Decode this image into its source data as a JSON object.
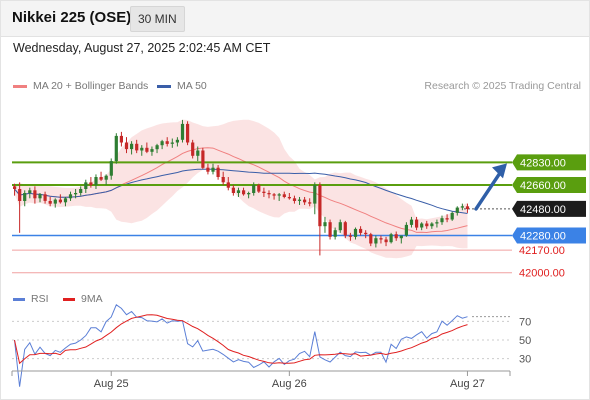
{
  "header": {
    "title": "Nikkei 225 (OSE)",
    "interval": "30 MIN"
  },
  "timestamp": "Wednesday, August 27, 2025 2:02:45 AM CET",
  "legend": {
    "ma20": "MA 20 + Bollinger Bands",
    "ma50": "MA 50",
    "credit": "Research © 2025 Trading Central"
  },
  "rsi_legend": {
    "rsi": "RSI",
    "ma9": "9MA"
  },
  "colors": {
    "up": "#2e7d32",
    "down": "#c62828",
    "ma20": "#f08080",
    "ma50": "#3a5ea8",
    "bollinger": "#fbe0e0",
    "resistance": "#5a9e0f",
    "support": "#3b82e6",
    "weak_support": "#f0a0a0",
    "arrow": "#2f5fa8",
    "rsi": "#5b7fd6",
    "rsi_ma": "#e02020"
  },
  "chart_data": [
    {
      "type": "candlestick",
      "title": "Nikkei 225 (OSE)",
      "x_labels": [
        "Aug 25",
        "Aug 26",
        "Aug 27"
      ],
      "ylim": [
        41930,
        43330
      ],
      "current_price": 42480.0,
      "levels": [
        {
          "label": "42830.00",
          "value": 42830.0,
          "kind": "resistance"
        },
        {
          "label": "42660.00",
          "value": 42660.0,
          "kind": "resistance"
        },
        {
          "label": "42480.00",
          "value": 42480.0,
          "kind": "current"
        },
        {
          "label": "42280.00",
          "value": 42280.0,
          "kind": "support"
        },
        {
          "label": "42170.00",
          "value": 42170.0,
          "kind": "weak-support"
        },
        {
          "label": "42000.00",
          "value": 42000.0,
          "kind": "weak-support"
        }
      ],
      "ohlc": [
        [
          42650,
          42670,
          42580,
          42630
        ],
        [
          42630,
          42680,
          42300,
          42540
        ],
        [
          42540,
          42620,
          42500,
          42600
        ],
        [
          42600,
          42640,
          42560,
          42620
        ],
        [
          42620,
          42650,
          42520,
          42560
        ],
        [
          42560,
          42600,
          42530,
          42590
        ],
        [
          42590,
          42610,
          42520,
          42540
        ],
        [
          42540,
          42570,
          42500,
          42520
        ],
        [
          42520,
          42560,
          42490,
          42550
        ],
        [
          42550,
          42590,
          42520,
          42530
        ],
        [
          42530,
          42570,
          42500,
          42560
        ],
        [
          42560,
          42610,
          42540,
          42590
        ],
        [
          42590,
          42630,
          42560,
          42600
        ],
        [
          42600,
          42650,
          42580,
          42630
        ],
        [
          42630,
          42700,
          42600,
          42680
        ],
        [
          42680,
          42720,
          42640,
          42660
        ],
        [
          42660,
          42740,
          42630,
          42720
        ],
        [
          42720,
          42760,
          42690,
          42700
        ],
        [
          42700,
          42740,
          42660,
          42730
        ],
        [
          42730,
          42860,
          42700,
          42840
        ],
        [
          42840,
          43050,
          42820,
          43030
        ],
        [
          43030,
          43060,
          42950,
          42980
        ],
        [
          42980,
          43020,
          42900,
          42930
        ],
        [
          42930,
          42990,
          42890,
          42970
        ],
        [
          42970,
          43000,
          42900,
          42920
        ],
        [
          42920,
          42960,
          42880,
          42940
        ],
        [
          42940,
          42980,
          42900,
          42910
        ],
        [
          42910,
          42950,
          42880,
          42930
        ],
        [
          42930,
          42970,
          42900,
          42960
        ],
        [
          42960,
          43000,
          42930,
          42990
        ],
        [
          42990,
          43020,
          42950,
          42970
        ],
        [
          42970,
          43010,
          42940,
          42980
        ],
        [
          42980,
          43020,
          42950,
          43000
        ],
        [
          43000,
          43150,
          42980,
          43120
        ],
        [
          43120,
          43140,
          42960,
          42980
        ],
        [
          42980,
          43000,
          42860,
          42880
        ],
        [
          42880,
          42950,
          42840,
          42920
        ],
        [
          42920,
          42940,
          42780,
          42790
        ],
        [
          42790,
          42820,
          42740,
          42760
        ],
        [
          42760,
          42820,
          42740,
          42790
        ],
        [
          42790,
          42810,
          42700,
          42720
        ],
        [
          42720,
          42760,
          42660,
          42680
        ],
        [
          42680,
          42720,
          42620,
          42640
        ],
        [
          42640,
          42660,
          42580,
          42600
        ],
        [
          42600,
          42640,
          42570,
          42620
        ],
        [
          42620,
          42640,
          42580,
          42590
        ],
        [
          42590,
          42610,
          42560,
          42600
        ],
        [
          42600,
          42680,
          42580,
          42660
        ],
        [
          42660,
          42670,
          42600,
          42610
        ],
        [
          42610,
          42640,
          42570,
          42600
        ],
        [
          42600,
          42620,
          42560,
          42590
        ],
        [
          42590,
          42600,
          42550,
          42580
        ],
        [
          42580,
          42600,
          42540,
          42590
        ],
        [
          42590,
          42610,
          42560,
          42570
        ],
        [
          42570,
          42600,
          42550,
          42560
        ],
        [
          42560,
          42580,
          42520,
          42540
        ],
        [
          42540,
          42570,
          42510,
          42550
        ],
        [
          42550,
          42570,
          42510,
          42530
        ],
        [
          42530,
          42560,
          42500,
          42520
        ],
        [
          42520,
          42680,
          42440,
          42660
        ],
        [
          42660,
          42680,
          42130,
          42350
        ],
        [
          42350,
          42420,
          42300,
          42380
        ],
        [
          42380,
          42400,
          42250,
          42270
        ],
        [
          42270,
          42340,
          42250,
          42320
        ],
        [
          42320,
          42400,
          42300,
          42380
        ],
        [
          42380,
          42390,
          42260,
          42280
        ],
        [
          42280,
          42300,
          42240,
          42270
        ],
        [
          42270,
          42340,
          42250,
          42330
        ],
        [
          42330,
          42350,
          42280,
          42300
        ],
        [
          42300,
          42320,
          42260,
          42290
        ],
        [
          42290,
          42300,
          42200,
          42220
        ],
        [
          42220,
          42280,
          42190,
          42260
        ],
        [
          42260,
          42280,
          42220,
          42250
        ],
        [
          42250,
          42270,
          42200,
          42230
        ],
        [
          42230,
          42300,
          42220,
          42290
        ],
        [
          42290,
          42310,
          42240,
          42260
        ],
        [
          42260,
          42270,
          42220,
          42280
        ],
        [
          42280,
          42380,
          42270,
          42360
        ],
        [
          42360,
          42420,
          42340,
          42400
        ],
        [
          42400,
          42420,
          42320,
          42340
        ],
        [
          42340,
          42380,
          42320,
          42370
        ],
        [
          42370,
          42390,
          42330,
          42350
        ],
        [
          42350,
          42380,
          42330,
          42370
        ],
        [
          42370,
          42400,
          42340,
          42380
        ],
        [
          42380,
          42430,
          42360,
          42410
        ],
        [
          42410,
          42440,
          42380,
          42400
        ],
        [
          42400,
          42460,
          42390,
          42450
        ],
        [
          42450,
          42500,
          42430,
          42490
        ],
        [
          42490,
          42520,
          42470,
          42500
        ],
        [
          42500,
          42520,
          42450,
          42480
        ]
      ]
    },
    {
      "type": "line",
      "title": "RSI",
      "series": [
        {
          "name": "RSI"
        },
        {
          "name": "9MA"
        }
      ],
      "y_ticks": [
        70,
        50,
        30
      ],
      "ylim": [
        20,
        80
      ]
    }
  ]
}
